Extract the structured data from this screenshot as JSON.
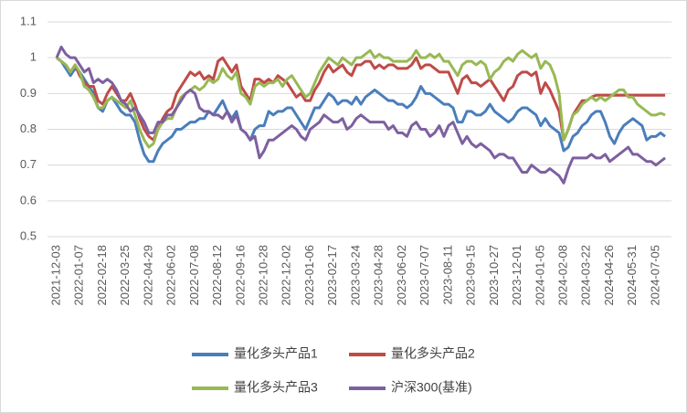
{
  "chart_data": {
    "type": "line",
    "categories": [
      "2021-12-03",
      null,
      null,
      null,
      null,
      "2022-01-07",
      null,
      null,
      null,
      null,
      "2022-02-18",
      null,
      null,
      null,
      null,
      "2022-03-25",
      null,
      null,
      null,
      null,
      "2022-04-29",
      null,
      null,
      null,
      null,
      "2022-06-02",
      null,
      null,
      null,
      null,
      "2022-07-08",
      null,
      null,
      null,
      null,
      "2022-08-12",
      null,
      null,
      null,
      null,
      "2022-09-16",
      null,
      null,
      null,
      null,
      "2022-10-28",
      null,
      null,
      null,
      null,
      "2022-12-02",
      null,
      null,
      null,
      null,
      "2023-01-06",
      null,
      null,
      null,
      null,
      "2023-02-17",
      null,
      null,
      null,
      null,
      "2023-03-24",
      null,
      null,
      null,
      null,
      "2023-04-28",
      null,
      null,
      null,
      null,
      "2023-06-02",
      null,
      null,
      null,
      null,
      "2023-07-07",
      null,
      null,
      null,
      null,
      "2023-08-11",
      null,
      null,
      null,
      null,
      "2023-09-15",
      null,
      null,
      null,
      null,
      "2023-10-27",
      null,
      null,
      null,
      null,
      "2023-12-01",
      null,
      null,
      null,
      null,
      "2024-01-05",
      null,
      null,
      null,
      null,
      "2024-02-08",
      null,
      null,
      null,
      null,
      "2024-03-22",
      null,
      null,
      null,
      null,
      "2024-04-26",
      null,
      null,
      null,
      null,
      "2024-05-31",
      null,
      null,
      null,
      null,
      "2024-07-05",
      null,
      null
    ],
    "series": [
      {
        "name": "量化多头产品1",
        "color": "#4a7ebb",
        "values": [
          1.0,
          0.99,
          0.97,
          0.95,
          0.97,
          0.96,
          0.94,
          0.92,
          0.9,
          0.86,
          0.85,
          0.88,
          0.89,
          0.87,
          0.85,
          0.84,
          0.84,
          0.82,
          0.77,
          0.73,
          0.71,
          0.71,
          0.74,
          0.76,
          0.77,
          0.78,
          0.8,
          0.8,
          0.81,
          0.82,
          0.82,
          0.83,
          0.83,
          0.85,
          0.84,
          0.86,
          0.88,
          0.85,
          0.83,
          0.85,
          0.8,
          0.79,
          0.77,
          0.8,
          0.81,
          0.81,
          0.85,
          0.84,
          0.85,
          0.85,
          0.86,
          0.86,
          0.84,
          0.82,
          0.8,
          0.83,
          0.86,
          0.86,
          0.88,
          0.9,
          0.89,
          0.87,
          0.88,
          0.88,
          0.87,
          0.89,
          0.87,
          0.89,
          0.9,
          0.91,
          0.9,
          0.89,
          0.88,
          0.88,
          0.87,
          0.87,
          0.86,
          0.87,
          0.89,
          0.92,
          0.9,
          0.9,
          0.89,
          0.88,
          0.87,
          0.87,
          0.86,
          0.82,
          0.82,
          0.85,
          0.85,
          0.84,
          0.84,
          0.85,
          0.87,
          0.85,
          0.84,
          0.83,
          0.82,
          0.83,
          0.85,
          0.86,
          0.86,
          0.85,
          0.84,
          0.81,
          0.83,
          0.81,
          0.8,
          0.79,
          0.74,
          0.75,
          0.78,
          0.79,
          0.81,
          0.82,
          0.84,
          0.85,
          0.85,
          0.82,
          0.78,
          0.76,
          0.79,
          0.81,
          0.82,
          0.83,
          0.82,
          0.81,
          0.77,
          0.78,
          0.78,
          0.79,
          0.78
        ]
      },
      {
        "name": "量化多头产品2",
        "color": "#be4b48",
        "values": [
          1.0,
          0.99,
          0.98,
          0.96,
          0.98,
          0.95,
          0.93,
          0.92,
          0.92,
          0.88,
          0.87,
          0.9,
          0.92,
          0.9,
          0.88,
          0.88,
          0.9,
          0.87,
          0.83,
          0.8,
          0.78,
          0.77,
          0.8,
          0.83,
          0.85,
          0.86,
          0.9,
          0.92,
          0.94,
          0.96,
          0.95,
          0.96,
          0.94,
          0.95,
          0.94,
          0.99,
          1.0,
          0.98,
          0.96,
          0.98,
          0.92,
          0.9,
          0.88,
          0.94,
          0.94,
          0.93,
          0.94,
          0.93,
          0.95,
          0.94,
          0.93,
          0.91,
          0.89,
          0.9,
          0.88,
          0.88,
          0.91,
          0.93,
          0.96,
          0.98,
          0.96,
          0.97,
          0.98,
          0.96,
          0.95,
          0.98,
          0.98,
          0.99,
          0.99,
          0.97,
          0.98,
          0.97,
          0.98,
          0.98,
          0.97,
          0.97,
          0.97,
          0.98,
          1.0,
          0.97,
          0.98,
          0.98,
          0.97,
          0.96,
          0.96,
          0.96,
          0.93,
          0.9,
          0.94,
          0.95,
          0.93,
          0.93,
          0.92,
          0.93,
          0.94,
          0.92,
          0.9,
          0.88,
          0.91,
          0.92,
          0.95,
          0.96,
          0.96,
          0.95,
          0.96,
          0.9,
          0.93,
          0.91,
          0.88,
          0.85,
          0.77,
          0.8,
          0.84,
          0.86,
          0.88,
          0.88,
          0.89,
          0.895,
          0.895,
          0.895,
          0.895,
          0.895,
          0.895,
          0.895,
          0.895,
          0.895,
          0.895,
          0.895,
          0.895,
          0.895,
          0.895,
          0.895,
          0.895
        ]
      },
      {
        "name": "量化多头产品3",
        "color": "#98b954",
        "values": [
          1.0,
          0.99,
          0.98,
          0.96,
          0.98,
          0.96,
          0.92,
          0.91,
          0.89,
          0.86,
          0.86,
          0.88,
          0.89,
          0.88,
          0.87,
          0.86,
          0.88,
          0.84,
          0.8,
          0.77,
          0.75,
          0.76,
          0.8,
          0.82,
          0.83,
          0.83,
          0.86,
          0.89,
          0.9,
          0.91,
          0.92,
          0.91,
          0.92,
          0.94,
          0.93,
          0.94,
          0.97,
          0.95,
          0.94,
          0.96,
          0.9,
          0.89,
          0.87,
          0.92,
          0.93,
          0.92,
          0.93,
          0.93,
          0.94,
          0.92,
          0.94,
          0.95,
          0.93,
          0.91,
          0.89,
          0.9,
          0.93,
          0.96,
          0.98,
          1.0,
          0.99,
          0.98,
          1.0,
          0.99,
          0.98,
          1.0,
          1.0,
          1.01,
          1.02,
          1.0,
          1.01,
          1.0,
          1.0,
          0.99,
          0.99,
          0.99,
          0.99,
          1.0,
          1.02,
          1.0,
          1.0,
          1.01,
          1.0,
          1.01,
          0.99,
          0.99,
          0.97,
          0.95,
          0.98,
          0.99,
          0.99,
          0.98,
          0.99,
          0.98,
          0.94,
          0.96,
          0.97,
          0.99,
          1.0,
          0.99,
          1.01,
          1.02,
          1.01,
          1.0,
          1.01,
          0.97,
          0.99,
          0.98,
          0.95,
          0.9,
          0.77,
          0.8,
          0.84,
          0.85,
          0.87,
          0.88,
          0.89,
          0.88,
          0.89,
          0.88,
          0.89,
          0.9,
          0.91,
          0.91,
          0.89,
          0.89,
          0.87,
          0.86,
          0.85,
          0.84,
          0.84,
          0.845,
          0.84
        ]
      },
      {
        "name": "沪深300(基准)",
        "color": "#7d60a0",
        "values": [
          1.0,
          1.03,
          1.01,
          1.0,
          1.0,
          0.98,
          0.96,
          0.97,
          0.93,
          0.94,
          0.93,
          0.94,
          0.93,
          0.91,
          0.88,
          0.87,
          0.85,
          0.86,
          0.84,
          0.82,
          0.79,
          0.79,
          0.82,
          0.82,
          0.84,
          0.84,
          0.86,
          0.88,
          0.9,
          0.91,
          0.9,
          0.86,
          0.85,
          0.85,
          0.84,
          0.84,
          0.83,
          0.85,
          0.82,
          0.84,
          0.8,
          0.79,
          0.77,
          0.78,
          0.72,
          0.74,
          0.77,
          0.77,
          0.78,
          0.79,
          0.8,
          0.81,
          0.8,
          0.78,
          0.77,
          0.8,
          0.81,
          0.82,
          0.84,
          0.83,
          0.82,
          0.82,
          0.83,
          0.8,
          0.81,
          0.83,
          0.84,
          0.83,
          0.82,
          0.82,
          0.82,
          0.82,
          0.8,
          0.81,
          0.79,
          0.79,
          0.78,
          0.81,
          0.82,
          0.8,
          0.8,
          0.78,
          0.79,
          0.81,
          0.78,
          0.81,
          0.82,
          0.79,
          0.76,
          0.78,
          0.76,
          0.75,
          0.76,
          0.75,
          0.74,
          0.72,
          0.73,
          0.73,
          0.72,
          0.72,
          0.7,
          0.68,
          0.68,
          0.7,
          0.69,
          0.68,
          0.68,
          0.69,
          0.68,
          0.67,
          0.65,
          0.69,
          0.72,
          0.72,
          0.72,
          0.72,
          0.73,
          0.72,
          0.72,
          0.73,
          0.71,
          0.72,
          0.73,
          0.74,
          0.75,
          0.73,
          0.73,
          0.72,
          0.71,
          0.71,
          0.7,
          0.71,
          0.72
        ]
      }
    ],
    "ylim": [
      0.5,
      1.1
    ],
    "yticks": [
      0.5,
      0.6,
      0.7,
      0.8,
      0.9,
      1,
      1.1
    ],
    "grid": true,
    "legend": "bottom"
  }
}
